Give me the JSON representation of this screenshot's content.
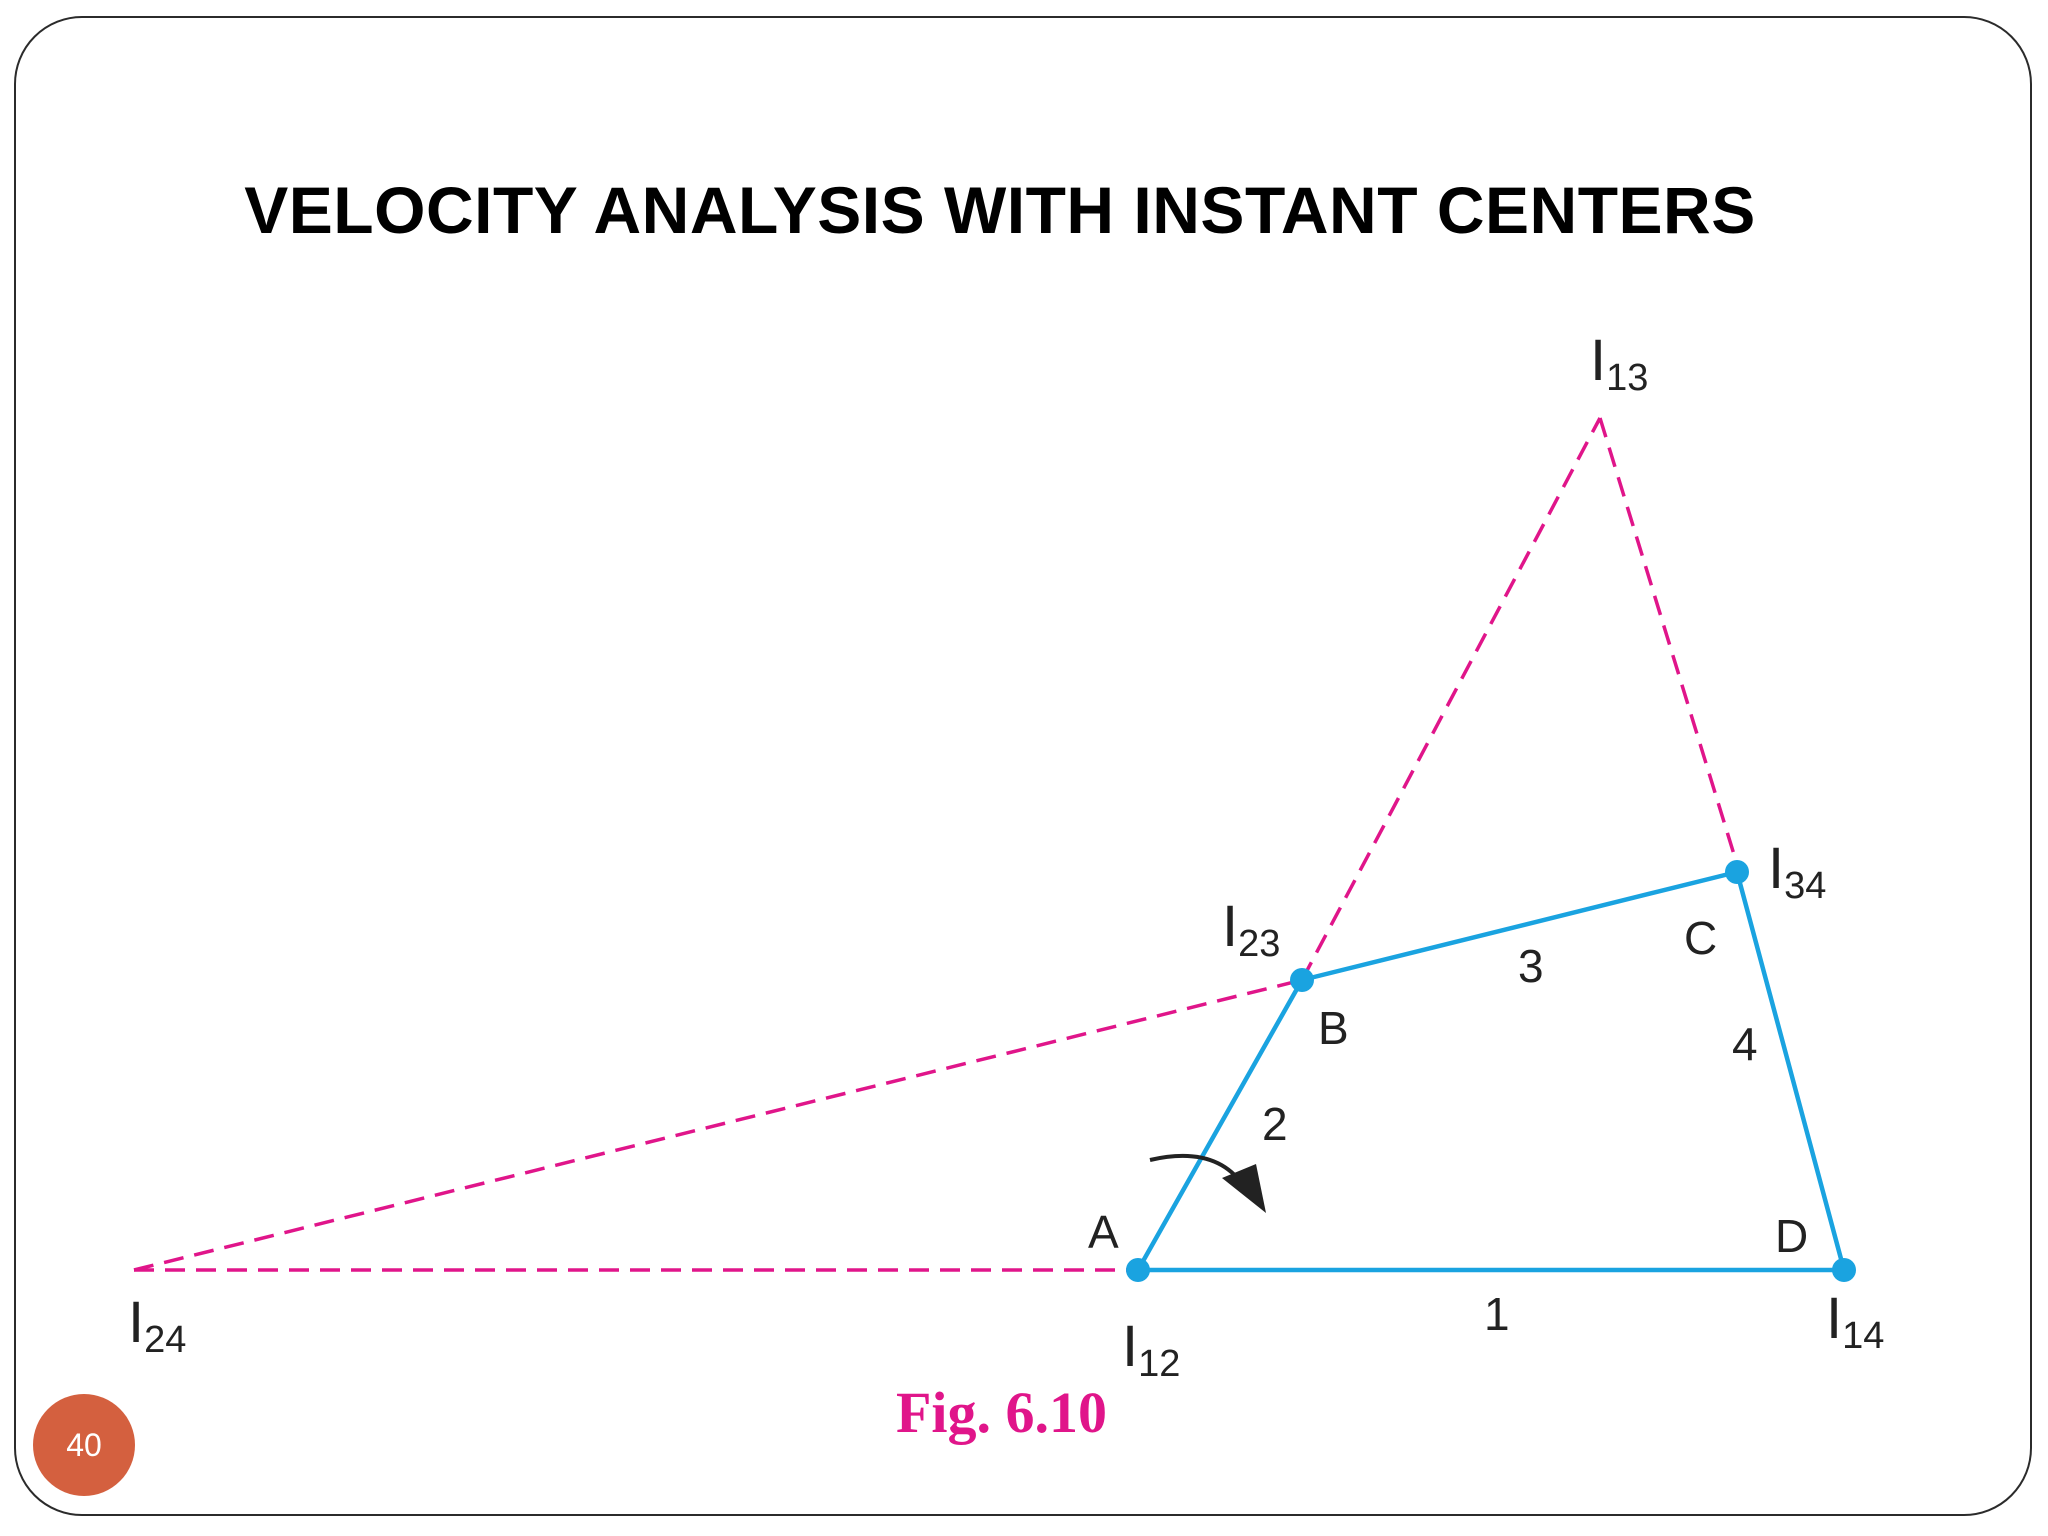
{
  "slide": {
    "title": "VELOCITY ANALYSIS WITH INSTANT CENTERS",
    "page_number": "40"
  },
  "figure": {
    "caption": "Fig. 6.10",
    "colors": {
      "links": "#1aa3e0",
      "construction_lines": "#e0158a",
      "caption": "#e0158a",
      "arrow": "#222222"
    },
    "point_labels": {
      "A": "A",
      "B": "B",
      "C": "C",
      "D": "D"
    },
    "link_labels": {
      "link1": "1",
      "link2": "2",
      "link3": "3",
      "link4": "4"
    },
    "instant_centers": {
      "I12": {
        "base": "I",
        "sub": "12"
      },
      "I13": {
        "base": "I",
        "sub": "13"
      },
      "I14": {
        "base": "I",
        "sub": "14"
      },
      "I23": {
        "base": "I",
        "sub": "23"
      },
      "I24": {
        "base": "I",
        "sub": "24"
      },
      "I34": {
        "base": "I",
        "sub": "34"
      }
    }
  }
}
